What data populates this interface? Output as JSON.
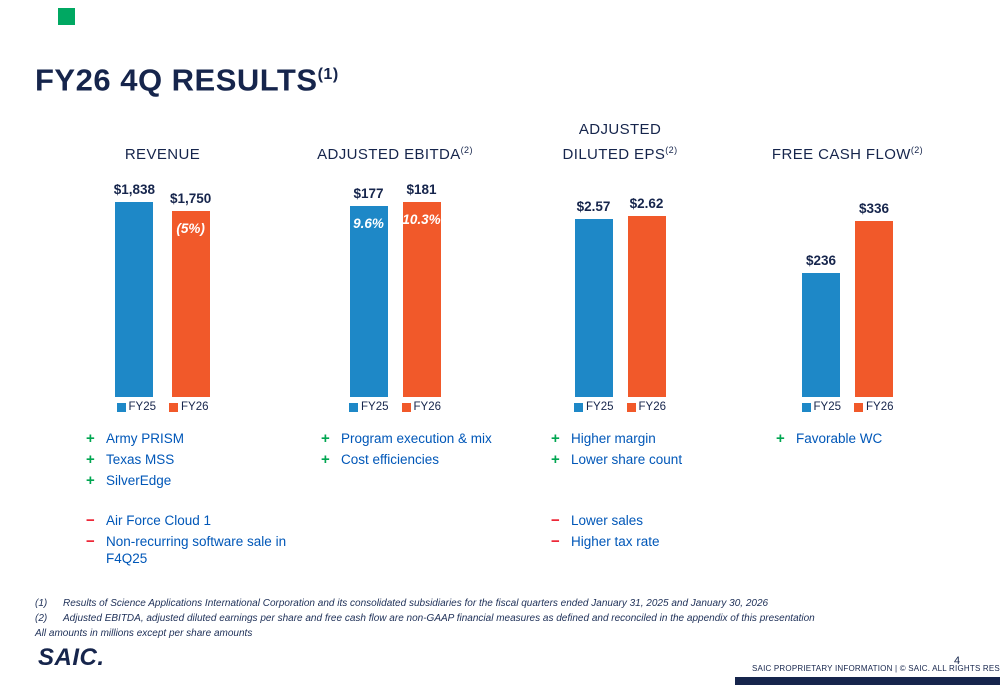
{
  "slide": {
    "title": "FY26 4Q RESULTS",
    "title_sup": "(1)"
  },
  "colors": {
    "fy25_blue": "#1E88C7",
    "fy26_orange": "#F1592A",
    "navy": "#16254C",
    "text_blue": "#0057B8",
    "positive_green": "#00A651",
    "negative_red": "#EC1C2D",
    "accent_green": "#00A862"
  },
  "icons": {
    "plus": "+",
    "minus": "−",
    "legend_swatch": "square"
  },
  "chart_data": [
    {
      "type": "bar",
      "title": "REVENUE",
      "title_lines": [
        "REVENUE"
      ],
      "title_sup": "",
      "categories": [
        "FY25",
        "FY26"
      ],
      "values": [
        1838,
        1750
      ],
      "value_labels": [
        "$1,838",
        "$1,750"
      ],
      "bar_annotations": [
        "",
        "(5%)"
      ],
      "ymax": 1838,
      "xlabel": "",
      "ylabel": "",
      "grid": false,
      "legend": [
        "FY25",
        "FY26"
      ],
      "legend_position": "bottom",
      "positives": [
        "Army PRISM",
        "Texas MSS",
        "SilverEdge"
      ],
      "negatives": [
        "Air Force Cloud 1",
        "Non-recurring software sale in F4Q25"
      ]
    },
    {
      "type": "bar",
      "title": "ADJUSTED EBITDA",
      "title_lines": [
        "ADJUSTED EBITDA"
      ],
      "title_sup": "(2)",
      "categories": [
        "FY25",
        "FY26"
      ],
      "values": [
        177,
        181
      ],
      "value_labels": [
        "$177",
        "$181"
      ],
      "bar_annotations": [
        "9.6%",
        "10.3%"
      ],
      "ymax": 181,
      "xlabel": "",
      "ylabel": "",
      "grid": false,
      "legend": [
        "FY25",
        "FY26"
      ],
      "legend_position": "bottom",
      "positives": [
        "Program execution & mix",
        "Cost efficiencies"
      ],
      "negatives": []
    },
    {
      "type": "bar",
      "title": "ADJUSTED DILUTED EPS",
      "title_lines": [
        "ADJUSTED",
        "DILUTED EPS"
      ],
      "title_sup": "(2)",
      "categories": [
        "FY25",
        "FY26"
      ],
      "values": [
        2.57,
        2.62
      ],
      "value_labels": [
        "$2.57",
        "$2.62"
      ],
      "bar_annotations": [
        "",
        ""
      ],
      "ymax": 2.82,
      "xlabel": "",
      "ylabel": "",
      "grid": false,
      "legend": [
        "FY25",
        "FY26"
      ],
      "legend_position": "bottom",
      "positives": [
        "Higher margin",
        "Lower share count"
      ],
      "negatives": [
        "Lower sales",
        "Higher tax rate"
      ]
    },
    {
      "type": "bar",
      "title": "FREE CASH FLOW",
      "title_lines": [
        "FREE CASH FLOW"
      ],
      "title_sup": "(2)",
      "categories": [
        "FY25",
        "FY26"
      ],
      "values": [
        236,
        336
      ],
      "value_labels": [
        "$236",
        "$336"
      ],
      "bar_annotations": [
        "",
        ""
      ],
      "ymax": 372,
      "xlabel": "",
      "ylabel": "",
      "grid": false,
      "legend": [
        "FY25",
        "FY26"
      ],
      "legend_position": "bottom",
      "positives": [
        "Favorable WC"
      ],
      "negatives": []
    }
  ],
  "footnotes": [
    {
      "num": "(1)",
      "text": "Results of Science Applications International Corporation and its consolidated subsidiaries for the fiscal quarters ended January 31, 2025 and January 30, 2026"
    },
    {
      "num": "(2)",
      "text": "Adjusted EBITDA, adjusted diluted earnings per share and free cash flow are non-GAAP financial measures as defined and reconciled in the appendix of this presentation"
    },
    {
      "num": "",
      "text": "All amounts in millions except per share amounts"
    }
  ],
  "footer": {
    "logo": "SAIC.",
    "proprietary": "SAIC PROPRIETARY INFORMATION  |  © SAIC. ALL RIGHTS RESERVED",
    "page_number": "4"
  }
}
